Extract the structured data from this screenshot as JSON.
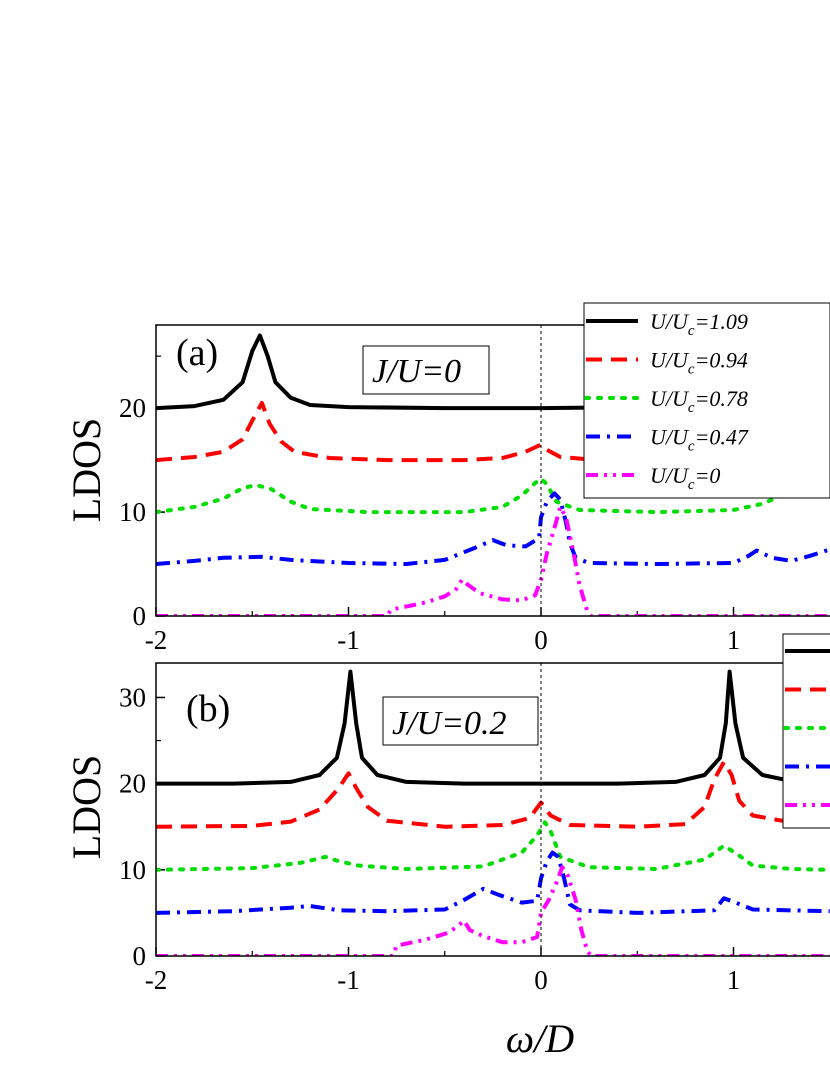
{
  "chart_data": [
    {
      "type": "line",
      "panel_label": "(a)",
      "annotation": "J/U=0",
      "xlabel": "",
      "ylabel": "LDOS",
      "xlim": [
        -2,
        1.5
      ],
      "ylim": [
        0,
        28
      ],
      "xticks": [
        -2,
        -1,
        0,
        1
      ],
      "yticks": [
        0,
        10,
        20
      ],
      "zero_line": "dashed vertical at x=0",
      "legend": {
        "placement": "top-right",
        "visible_entries": "all"
      },
      "series": [
        {
          "name": "U/U_c=1.09",
          "label_main": "U/U",
          "label_sub": "c",
          "label_value": "=1.09",
          "color": "#000000",
          "style": "solid",
          "points": [
            [
              -2,
              20
            ],
            [
              -1.8,
              20.2
            ],
            [
              -1.65,
              20.8
            ],
            [
              -1.55,
              22.5
            ],
            [
              -1.5,
              25.5
            ],
            [
              -1.46,
              27
            ],
            [
              -1.42,
              25
            ],
            [
              -1.38,
              22.5
            ],
            [
              -1.3,
              21
            ],
            [
              -1.2,
              20.3
            ],
            [
              -1,
              20.1
            ],
            [
              -0.5,
              20
            ],
            [
              0,
              20
            ],
            [
              0.5,
              20.1
            ],
            [
              0.8,
              20.6
            ],
            [
              0.95,
              21.8
            ],
            [
              1.05,
              23.5
            ],
            [
              1.12,
              26
            ],
            [
              1.15,
              27
            ],
            [
              1.19,
              25.5
            ],
            [
              1.25,
              22.5
            ],
            [
              1.35,
              21
            ],
            [
              1.5,
              20.4
            ]
          ]
        },
        {
          "name": "U/U_c=0.94",
          "label_main": "U/U",
          "label_sub": "c",
          "label_value": "=0.94",
          "color": "#ff0000",
          "style": "dashed",
          "points": [
            [
              -2,
              15
            ],
            [
              -1.8,
              15.3
            ],
            [
              -1.65,
              15.8
            ],
            [
              -1.55,
              17
            ],
            [
              -1.5,
              18.8
            ],
            [
              -1.45,
              20.5
            ],
            [
              -1.41,
              18.5
            ],
            [
              -1.35,
              16.8
            ],
            [
              -1.28,
              15.8
            ],
            [
              -1.1,
              15.2
            ],
            [
              -0.8,
              15
            ],
            [
              -0.4,
              15
            ],
            [
              -0.2,
              15.2
            ],
            [
              -0.08,
              15.8
            ],
            [
              0,
              16.5
            ],
            [
              0.03,
              16
            ],
            [
              0.1,
              15.3
            ],
            [
              0.3,
              15
            ],
            [
              0.8,
              15.2
            ],
            [
              1.0,
              15.8
            ],
            [
              1.1,
              16.8
            ],
            [
              1.2,
              18.5
            ],
            [
              1.28,
              20.5
            ],
            [
              1.31,
              21.2
            ],
            [
              1.35,
              20.2
            ],
            [
              1.42,
              17.8
            ],
            [
              1.5,
              16.4
            ]
          ]
        },
        {
          "name": "U/U_c=0.78",
          "label_main": "U/U",
          "label_sub": "c",
          "label_value": "=0.78",
          "color": "#00dd00",
          "style": "dotted",
          "points": [
            [
              -2,
              10
            ],
            [
              -1.8,
              10.5
            ],
            [
              -1.65,
              11.3
            ],
            [
              -1.55,
              12.3
            ],
            [
              -1.48,
              12.6
            ],
            [
              -1.4,
              12.2
            ],
            [
              -1.3,
              11
            ],
            [
              -1.2,
              10.3
            ],
            [
              -0.9,
              10
            ],
            [
              -0.4,
              10
            ],
            [
              -0.2,
              10.5
            ],
            [
              -0.1,
              11.6
            ],
            [
              -0.03,
              12.8
            ],
            [
              0,
              13.2
            ],
            [
              0.03,
              12.7
            ],
            [
              0.08,
              11
            ],
            [
              0.2,
              10.2
            ],
            [
              0.6,
              10
            ],
            [
              1.0,
              10.2
            ],
            [
              1.15,
              10.8
            ],
            [
              1.3,
              12
            ],
            [
              1.38,
              12.8
            ],
            [
              1.45,
              13.1
            ],
            [
              1.5,
              12.8
            ]
          ]
        },
        {
          "name": "U/U_c=0.47",
          "label_main": "U/U",
          "label_sub": "c",
          "label_value": "=0.47",
          "color": "#0000ff",
          "style": "dash-dot",
          "points": [
            [
              -2,
              5
            ],
            [
              -1.8,
              5.3
            ],
            [
              -1.65,
              5.6
            ],
            [
              -1.45,
              5.7
            ],
            [
              -1.3,
              5.4
            ],
            [
              -1.0,
              5.1
            ],
            [
              -0.7,
              5
            ],
            [
              -0.5,
              5.4
            ],
            [
              -0.35,
              6.5
            ],
            [
              -0.25,
              7.3
            ],
            [
              -0.18,
              6.8
            ],
            [
              -0.08,
              6.7
            ],
            [
              -0.01,
              7.5
            ],
            [
              0,
              9.5
            ],
            [
              0.03,
              11
            ],
            [
              0.07,
              11.8
            ],
            [
              0.1,
              11.2
            ],
            [
              0.13,
              9
            ],
            [
              0.15,
              7
            ],
            [
              0.18,
              5.6
            ],
            [
              0.25,
              5.1
            ],
            [
              0.6,
              5
            ],
            [
              1.0,
              5.1
            ],
            [
              1.08,
              5.8
            ],
            [
              1.12,
              6.3
            ],
            [
              1.2,
              5.6
            ],
            [
              1.3,
              5.3
            ],
            [
              1.4,
              5.8
            ],
            [
              1.5,
              6.4
            ]
          ]
        },
        {
          "name": "U/U_c=0",
          "label_main": "U/U",
          "label_sub": "c",
          "label_value": "=0",
          "color": "#ff00ff",
          "style": "dash-dot-dot",
          "points": [
            [
              -2,
              0
            ],
            [
              -0.8,
              0
            ],
            [
              -0.78,
              0.6
            ],
            [
              -0.6,
              1.3
            ],
            [
              -0.5,
              1.9
            ],
            [
              -0.44,
              2.6
            ],
            [
              -0.41,
              3.5
            ],
            [
              -0.38,
              3
            ],
            [
              -0.32,
              2.2
            ],
            [
              -0.2,
              1.6
            ],
            [
              -0.1,
              1.5
            ],
            [
              -0.03,
              2
            ],
            [
              0,
              3.5
            ],
            [
              0.03,
              6
            ],
            [
              0.07,
              8.5
            ],
            [
              0.1,
              10.5
            ],
            [
              0.13,
              9.5
            ],
            [
              0.17,
              6
            ],
            [
              0.2,
              3
            ],
            [
              0.24,
              0.5
            ],
            [
              0.26,
              0
            ],
            [
              1.5,
              0
            ]
          ]
        }
      ]
    },
    {
      "type": "line",
      "panel_label": "(b)",
      "annotation": "J/U=0.2",
      "xlabel": "ω/D",
      "ylabel": "LDOS",
      "xlim": [
        -2,
        1.5
      ],
      "ylim": [
        0,
        34
      ],
      "xticks": [
        -2,
        -1,
        0,
        1
      ],
      "yticks": [
        0,
        10,
        20,
        30
      ],
      "zero_line": "dashed vertical at x=0",
      "legend": {
        "placement": "top-right",
        "visible_entries": "markers only (cropped)"
      },
      "series": [
        {
          "name": "",
          "color": "#000000",
          "style": "solid",
          "points": [
            [
              -2,
              20
            ],
            [
              -1.6,
              20
            ],
            [
              -1.3,
              20.2
            ],
            [
              -1.15,
              21
            ],
            [
              -1.06,
              23
            ],
            [
              -1.02,
              27
            ],
            [
              -0.99,
              33
            ],
            [
              -0.96,
              27
            ],
            [
              -0.93,
              23
            ],
            [
              -0.85,
              21
            ],
            [
              -0.7,
              20.2
            ],
            [
              -0.4,
              20
            ],
            [
              0.4,
              20
            ],
            [
              0.7,
              20.2
            ],
            [
              0.85,
              21
            ],
            [
              0.93,
              23
            ],
            [
              0.96,
              27
            ],
            [
              0.98,
              33
            ],
            [
              1.01,
              27
            ],
            [
              1.05,
              23
            ],
            [
              1.15,
              21
            ],
            [
              1.3,
              20.3
            ],
            [
              1.5,
              20.1
            ]
          ]
        },
        {
          "name": "",
          "color": "#ff0000",
          "style": "dashed",
          "points": [
            [
              -2,
              15
            ],
            [
              -1.5,
              15.1
            ],
            [
              -1.3,
              15.6
            ],
            [
              -1.15,
              17
            ],
            [
              -1.05,
              19.5
            ],
            [
              -1.0,
              21.2
            ],
            [
              -0.96,
              19.5
            ],
            [
              -0.9,
              17.3
            ],
            [
              -0.8,
              15.7
            ],
            [
              -0.5,
              15
            ],
            [
              -0.2,
              15.2
            ],
            [
              -0.06,
              16
            ],
            [
              0,
              17.8
            ],
            [
              0.05,
              16.3
            ],
            [
              0.15,
              15.2
            ],
            [
              0.5,
              15
            ],
            [
              0.75,
              15.3
            ],
            [
              0.85,
              17.3
            ],
            [
              0.9,
              20.5
            ],
            [
              0.95,
              22.5
            ],
            [
              0.99,
              21
            ],
            [
              1.03,
              18
            ],
            [
              1.1,
              16.3
            ],
            [
              1.3,
              15.5
            ],
            [
              1.5,
              15.3
            ]
          ]
        },
        {
          "name": "",
          "color": "#00dd00",
          "style": "dotted",
          "points": [
            [
              -2,
              10
            ],
            [
              -1.5,
              10.2
            ],
            [
              -1.25,
              10.8
            ],
            [
              -1.12,
              11.5
            ],
            [
              -1.05,
              11
            ],
            [
              -0.95,
              10.5
            ],
            [
              -0.7,
              10.1
            ],
            [
              -0.3,
              10.4
            ],
            [
              -0.1,
              12
            ],
            [
              -0.02,
              14
            ],
            [
              0.02,
              15.5
            ],
            [
              0.05,
              14.5
            ],
            [
              0.1,
              11.5
            ],
            [
              0.25,
              10.3
            ],
            [
              0.6,
              10.1
            ],
            [
              0.85,
              11.2
            ],
            [
              0.95,
              12.8
            ],
            [
              1.02,
              11.8
            ],
            [
              1.1,
              10.5
            ],
            [
              1.3,
              10.1
            ],
            [
              1.5,
              10
            ]
          ]
        },
        {
          "name": "",
          "color": "#0000ff",
          "style": "dash-dot",
          "points": [
            [
              -2,
              5
            ],
            [
              -1.6,
              5.2
            ],
            [
              -1.3,
              5.6
            ],
            [
              -1.2,
              5.8
            ],
            [
              -1.05,
              5.3
            ],
            [
              -0.8,
              5.2
            ],
            [
              -0.5,
              5.4
            ],
            [
              -0.4,
              6.5
            ],
            [
              -0.3,
              7.8
            ],
            [
              -0.22,
              7.1
            ],
            [
              -0.1,
              6.2
            ],
            [
              -0.02,
              6.4
            ],
            [
              0,
              9
            ],
            [
              0.03,
              11
            ],
            [
              0.06,
              12
            ],
            [
              0.09,
              11.5
            ],
            [
              0.12,
              9
            ],
            [
              0.15,
              6
            ],
            [
              0.2,
              5.3
            ],
            [
              0.5,
              5
            ],
            [
              0.9,
              5.3
            ],
            [
              0.95,
              6.7
            ],
            [
              1.0,
              6.3
            ],
            [
              1.1,
              5.4
            ],
            [
              1.5,
              5.2
            ]
          ]
        },
        {
          "name": "",
          "color": "#ff00ff",
          "style": "dash-dot-dot",
          "points": [
            [
              -2,
              0
            ],
            [
              -0.77,
              0
            ],
            [
              -0.75,
              1.2
            ],
            [
              -0.6,
              1.9
            ],
            [
              -0.48,
              2.7
            ],
            [
              -0.43,
              3.5
            ],
            [
              -0.4,
              4.1
            ],
            [
              -0.37,
              3
            ],
            [
              -0.3,
              2.3
            ],
            [
              -0.2,
              1.6
            ],
            [
              -0.1,
              1.6
            ],
            [
              -0.02,
              2.2
            ],
            [
              0,
              5
            ],
            [
              0.04,
              6.5
            ],
            [
              0.08,
              8.5
            ],
            [
              0.11,
              10.3
            ],
            [
              0.14,
              9.3
            ],
            [
              0.18,
              6.5
            ],
            [
              0.21,
              3
            ],
            [
              0.24,
              0.6
            ],
            [
              0.26,
              0
            ],
            [
              1.5,
              0
            ]
          ]
        }
      ]
    }
  ]
}
